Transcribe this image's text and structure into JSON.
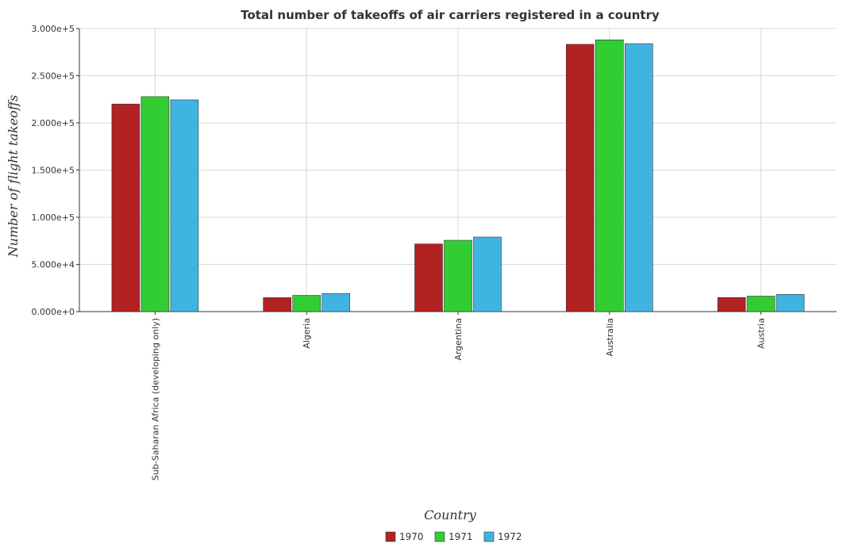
{
  "chart_data": {
    "type": "bar",
    "title": "Total number of takeoffs of air carriers registered in a country",
    "xlabel": "Country",
    "ylabel": "Number of flight takeoffs",
    "categories": [
      "Sub-Saharan Africa (developing only)",
      "Algeria",
      "Argentina",
      "Australia",
      "Austria"
    ],
    "series": [
      {
        "name": "1970",
        "color": "#b22222",
        "values": [
          220000,
          14800,
          71700,
          283300,
          14900
        ]
      },
      {
        "name": "1971",
        "color": "#32cd32",
        "values": [
          227800,
          17200,
          75600,
          288000,
          16400
        ]
      },
      {
        "name": "1972",
        "color": "#40b4e0",
        "values": [
          224400,
          19200,
          79000,
          284000,
          18200
        ]
      }
    ],
    "yticks": [
      "0.000e+0",
      "5.000e+4",
      "1.000e+5",
      "1.500e+5",
      "2.000e+5",
      "2.500e+5",
      "3.000e+5"
    ],
    "ytick_values": [
      0,
      50000,
      100000,
      150000,
      200000,
      250000,
      300000
    ],
    "ylim": [
      0,
      300000
    ],
    "grid": true,
    "legend_position": "bottom"
  }
}
